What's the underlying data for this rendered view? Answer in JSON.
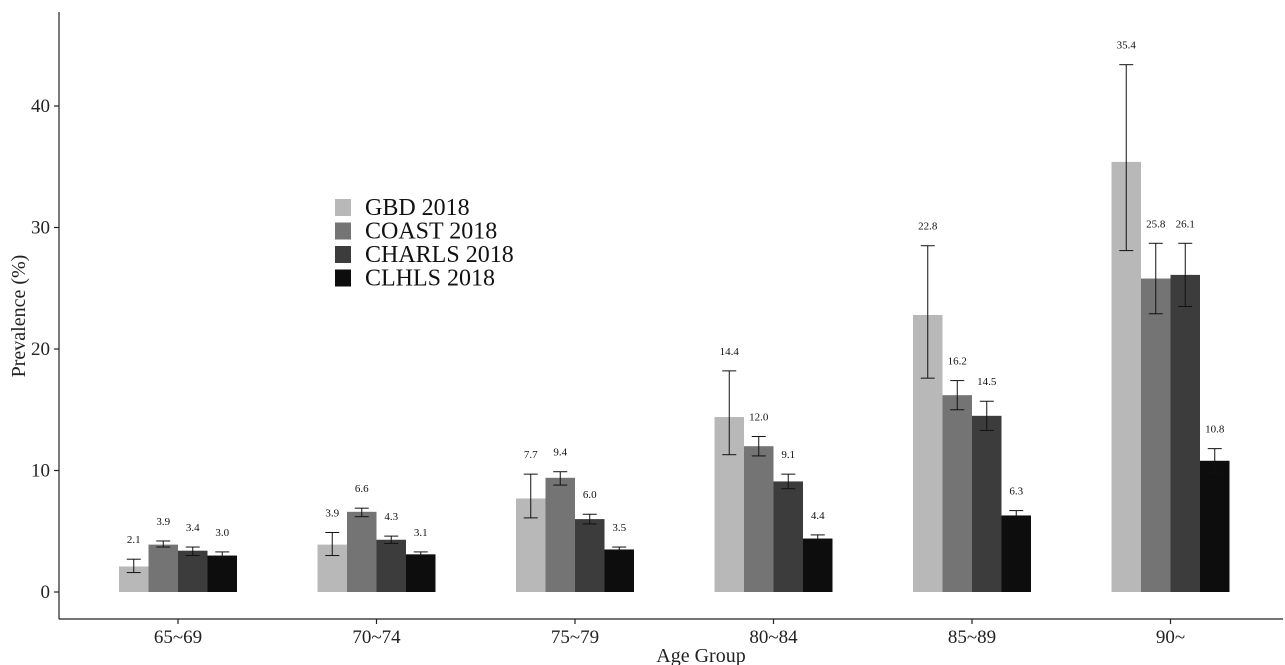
{
  "chart_data": {
    "type": "bar",
    "xlabel": "Age Group",
    "ylabel": "Prevalence (%)",
    "ylim": [
      0,
      47
    ],
    "yticks": [
      0,
      10,
      20,
      30,
      40
    ],
    "grid": false,
    "legend_position": "upper-left-center",
    "categories": [
      "65~69",
      "70~74",
      "75~79",
      "80~84",
      "85~89",
      "90~"
    ],
    "series": [
      {
        "name": "GBD 2018",
        "color": "#b8b8b8",
        "values": [
          2.1,
          3.9,
          7.7,
          14.4,
          22.8,
          35.4
        ],
        "labels": [
          "2.1",
          "3.9",
          "7.7",
          "14.4",
          "22.8",
          "35.4"
        ],
        "error_low": [
          1.6,
          3.0,
          6.1,
          11.3,
          17.6,
          28.1
        ],
        "error_high": [
          2.7,
          4.9,
          9.7,
          18.2,
          28.5,
          43.4
        ]
      },
      {
        "name": "COAST 2018",
        "color": "#747474",
        "values": [
          3.9,
          6.6,
          9.4,
          12.0,
          16.2,
          25.8
        ],
        "labels": [
          "3.9",
          "6.6",
          "9.4",
          "12.0",
          "16.2",
          "25.8"
        ],
        "error_low": [
          3.7,
          6.2,
          8.8,
          11.2,
          15.0,
          22.9
        ],
        "error_high": [
          4.2,
          6.9,
          9.9,
          12.8,
          17.4,
          28.7
        ]
      },
      {
        "name": "CHARLS 2018",
        "color": "#3c3c3c",
        "values": [
          3.4,
          4.3,
          6.0,
          9.1,
          14.5,
          26.1
        ],
        "labels": [
          "3.4",
          "4.3",
          "6.0",
          "9.1",
          "14.5",
          "26.1"
        ],
        "error_low": [
          3.0,
          4.0,
          5.6,
          8.5,
          13.3,
          23.5
        ],
        "error_high": [
          3.7,
          4.6,
          6.4,
          9.7,
          15.7,
          28.7
        ]
      },
      {
        "name": "CLHLS 2018",
        "color": "#0d0d0d",
        "values": [
          3.0,
          3.1,
          3.5,
          4.4,
          6.3,
          10.8
        ],
        "labels": [
          "3.0",
          "3.1",
          "3.5",
          "4.4",
          "6.3",
          "10.8"
        ],
        "error_low": [
          2.8,
          3.0,
          3.3,
          4.2,
          6.0,
          9.8
        ],
        "error_high": [
          3.3,
          3.3,
          3.7,
          4.7,
          6.7,
          11.8
        ]
      }
    ]
  }
}
